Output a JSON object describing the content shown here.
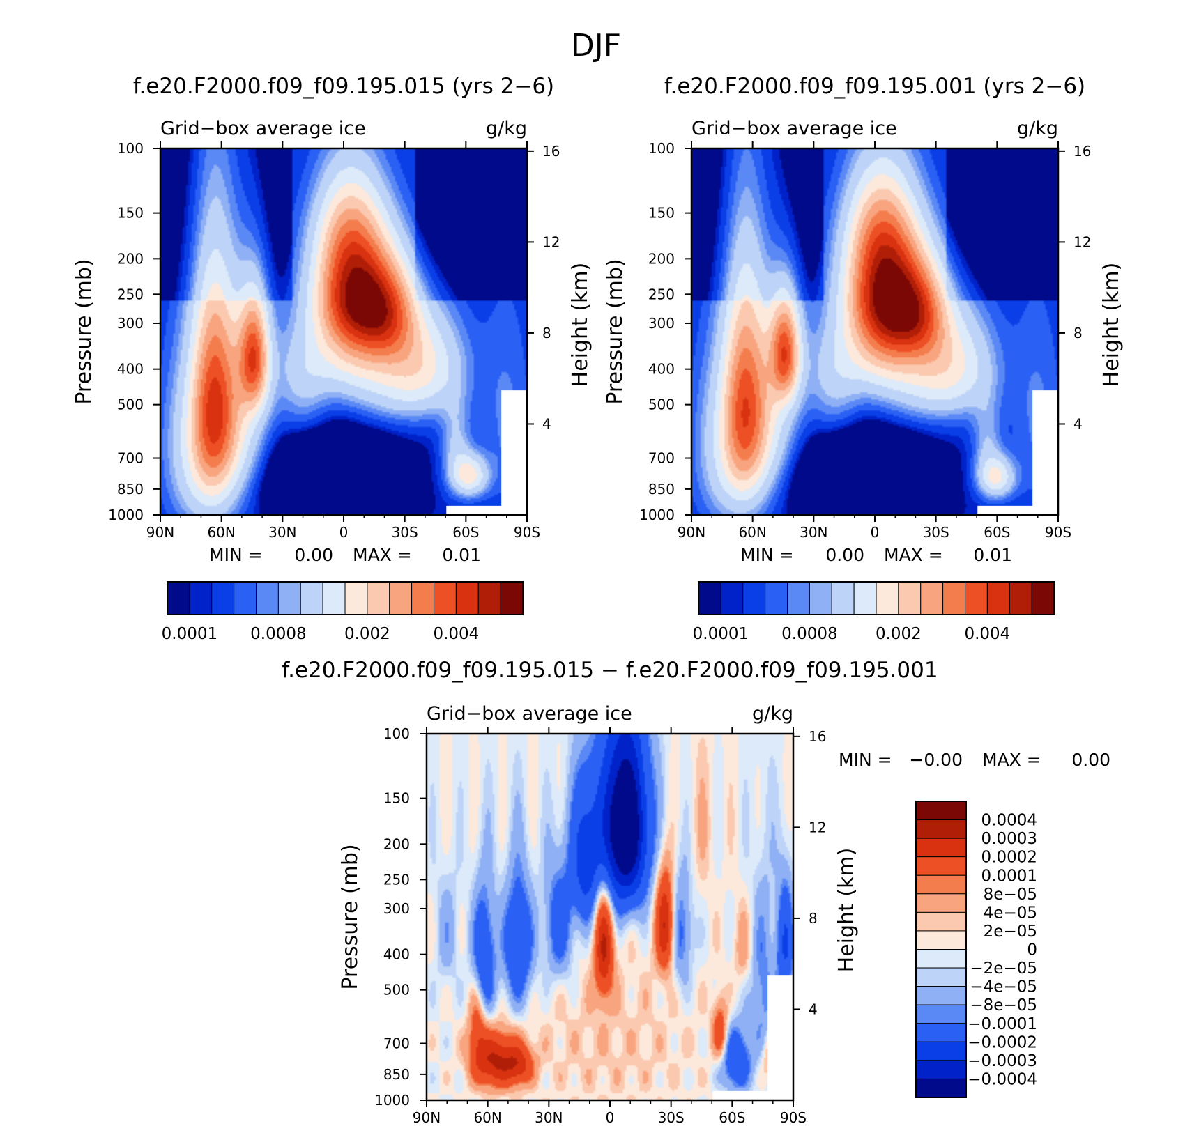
{
  "main_title": "DJF",
  "chart_data": [
    {
      "type": "heatmap",
      "id": "p1",
      "title": "f.e20.F2000.f09_f09.195.015 (yrs 2−6)",
      "left_label": "Grid−box average ice",
      "right_label": "g/kg",
      "xlabel": "",
      "ylabel": "Pressure (mb)",
      "y2label": "Height (km)",
      "x_ticks": [
        "90N",
        "60N",
        "30N",
        "0",
        "30S",
        "60S",
        "90S"
      ],
      "x_range": [
        90,
        -90
      ],
      "y_ticks": [
        "100",
        "150",
        "200",
        "250",
        "300",
        "400",
        "500",
        "700",
        "850",
        "1000"
      ],
      "y_ticks_values": [
        100,
        150,
        200,
        250,
        300,
        400,
        500,
        700,
        850,
        1000
      ],
      "y_range": [
        100,
        1000
      ],
      "y2_ticks": [
        "16",
        "12",
        "8",
        "4"
      ],
      "y2_values": [
        16,
        12,
        8,
        4
      ],
      "minmax": {
        "min_label": "MIN =",
        "min": "0.00",
        "max_label": "MAX =",
        "max": "0.01"
      },
      "colorbar_labels": [
        "0.0001",
        "0.0008",
        "0.002",
        "0.004"
      ],
      "colorbar_colors": [
        "#000a8a",
        "#0022c8",
        "#0a3fe8",
        "#2a60f4",
        "#5a88f4",
        "#8fb0f4",
        "#bdd3f7",
        "#ddeaf9",
        "#fde9dc",
        "#fbc9b0",
        "#f8a57f",
        "#f47d4e",
        "#ee5025",
        "#d83210",
        "#b01e08",
        "#7c0805"
      ],
      "blobs": [
        {
          "lat": -5,
          "p": 250,
          "a": 0.0052,
          "sx": 13,
          "sp": 70
        },
        {
          "lat": -22,
          "p": 280,
          "a": 0.0025,
          "sx": 10,
          "sp": 60
        },
        {
          "lat": -5,
          "p": 380,
          "a": 0.0012,
          "sx": 18,
          "sp": 60
        },
        {
          "lat": -38,
          "p": 380,
          "a": 0.0018,
          "sx": 14,
          "sp": 90
        },
        {
          "lat": -62,
          "p": 780,
          "a": 0.002,
          "sx": 6,
          "sp": 70
        },
        {
          "lat": -55,
          "p": 650,
          "a": 0.0009,
          "sx": 5,
          "sp": 130
        },
        {
          "lat": 44,
          "p": 370,
          "a": 0.0033,
          "sx": 5,
          "sp": 90
        },
        {
          "lat": 64,
          "p": 480,
          "a": 0.0023,
          "sx": 7,
          "sp": 220
        },
        {
          "lat": 54,
          "p": 520,
          "a": 0.0018,
          "sx": 12,
          "sp": 250
        },
        {
          "lat": 66,
          "p": 680,
          "a": 0.0013,
          "sx": 10,
          "sp": 260
        },
        {
          "lat": 20,
          "p": 450,
          "a": 0.0008,
          "sx": 9,
          "sp": 120
        },
        {
          "lat": -18,
          "p": 470,
          "a": 0.0007,
          "sx": 20,
          "sp": 70
        },
        {
          "lat": 78,
          "p": 650,
          "a": 0.0006,
          "sx": 10,
          "sp": 260
        },
        {
          "lat": -80,
          "p": 550,
          "a": 0.0005,
          "sx": 9,
          "sp": 250
        },
        {
          "lat": -2,
          "p": 160,
          "a": 0.0012,
          "sx": 11,
          "sp": 40
        }
      ]
    },
    {
      "type": "heatmap",
      "id": "p2",
      "title": "f.e20.F2000.f09_f09.195.001 (yrs 2−6)",
      "left_label": "Grid−box average ice",
      "right_label": "g/kg",
      "xlabel": "",
      "ylabel": "Pressure (mb)",
      "y2label": "Height (km)",
      "x_ticks": [
        "90N",
        "60N",
        "30N",
        "0",
        "30S",
        "60S",
        "90S"
      ],
      "x_range": [
        90,
        -90
      ],
      "y_ticks": [
        "100",
        "150",
        "200",
        "250",
        "300",
        "400",
        "500",
        "700",
        "850",
        "1000"
      ],
      "y_ticks_values": [
        100,
        150,
        200,
        250,
        300,
        400,
        500,
        700,
        850,
        1000
      ],
      "y_range": [
        100,
        1000
      ],
      "y2_ticks": [
        "16",
        "12",
        "8",
        "4"
      ],
      "y2_values": [
        16,
        12,
        8,
        4
      ],
      "minmax": {
        "min_label": "MIN =",
        "min": "0.00",
        "max_label": "MAX =",
        "max": "0.01"
      },
      "colorbar_labels": [
        "0.0001",
        "0.0008",
        "0.002",
        "0.004"
      ],
      "colorbar_colors": [
        "#000a8a",
        "#0022c8",
        "#0a3fe8",
        "#2a60f4",
        "#5a88f4",
        "#8fb0f4",
        "#bdd3f7",
        "#ddeaf9",
        "#fde9dc",
        "#fbc9b0",
        "#f8a57f",
        "#f47d4e",
        "#ee5025",
        "#d83210",
        "#b01e08",
        "#7c0805"
      ],
      "blobs": [
        {
          "lat": -5,
          "p": 250,
          "a": 0.0055,
          "sx": 13,
          "sp": 75
        },
        {
          "lat": -22,
          "p": 280,
          "a": 0.0025,
          "sx": 10,
          "sp": 60
        },
        {
          "lat": -5,
          "p": 380,
          "a": 0.0012,
          "sx": 18,
          "sp": 60
        },
        {
          "lat": -38,
          "p": 380,
          "a": 0.0017,
          "sx": 14,
          "sp": 90
        },
        {
          "lat": -60,
          "p": 790,
          "a": 0.0018,
          "sx": 6,
          "sp": 70
        },
        {
          "lat": -55,
          "p": 650,
          "a": 0.0008,
          "sx": 5,
          "sp": 130
        },
        {
          "lat": 44,
          "p": 360,
          "a": 0.0034,
          "sx": 5,
          "sp": 80
        },
        {
          "lat": 64,
          "p": 480,
          "a": 0.0023,
          "sx": 7,
          "sp": 220
        },
        {
          "lat": 54,
          "p": 520,
          "a": 0.0016,
          "sx": 12,
          "sp": 240
        },
        {
          "lat": 66,
          "p": 680,
          "a": 0.0011,
          "sx": 10,
          "sp": 240
        },
        {
          "lat": 20,
          "p": 450,
          "a": 0.0008,
          "sx": 9,
          "sp": 120
        },
        {
          "lat": -18,
          "p": 470,
          "a": 0.0007,
          "sx": 20,
          "sp": 70
        },
        {
          "lat": 78,
          "p": 650,
          "a": 0.0006,
          "sx": 10,
          "sp": 260
        },
        {
          "lat": -80,
          "p": 550,
          "a": 0.0005,
          "sx": 9,
          "sp": 250
        },
        {
          "lat": -2,
          "p": 160,
          "a": 0.0012,
          "sx": 11,
          "sp": 40
        }
      ]
    },
    {
      "type": "heatmap",
      "id": "p3",
      "title": "f.e20.F2000.f09_f09.195.015 − f.e20.F2000.f09_f09.195.001",
      "left_label": "Grid−box average ice",
      "right_label": "g/kg",
      "xlabel": "",
      "ylabel": "Pressure (mb)",
      "y2label": "Height (km)",
      "x_ticks": [
        "90N",
        "60N",
        "30N",
        "0",
        "30S",
        "60S",
        "90S"
      ],
      "x_range": [
        90,
        -90
      ],
      "y_ticks": [
        "100",
        "150",
        "200",
        "250",
        "300",
        "400",
        "500",
        "700",
        "850",
        "1000"
      ],
      "y_ticks_values": [
        100,
        150,
        200,
        250,
        300,
        400,
        500,
        700,
        850,
        1000
      ],
      "y_range": [
        100,
        1000
      ],
      "y2_ticks": [
        "16",
        "12",
        "8",
        "4"
      ],
      "y2_values": [
        16,
        12,
        8,
        4
      ],
      "minmax": {
        "min_label": "MIN =",
        "min": "−0.00",
        "max_label": "MAX =",
        "max": "0.00"
      },
      "colorbar_labels": [
        "0.0004",
        "0.0003",
        "0.0002",
        "0.0001",
        "8e−05",
        "4e−05",
        "2e−05",
        "0",
        "−2e−05",
        "−4e−05",
        "−8e−05",
        "−0.0001",
        "−0.0002",
        "−0.0003",
        "−0.0004"
      ],
      "colorbar_colors": [
        "#7c0805",
        "#b01e08",
        "#d83210",
        "#ee5025",
        "#f47d4e",
        "#f8a57f",
        "#fbc9b0",
        "#fde9dc",
        "#ddeaf9",
        "#bdd3f7",
        "#8fb0f4",
        "#5a88f4",
        "#2a60f4",
        "#0a3fe8",
        "#0022c8",
        "#000a8a"
      ],
      "blobs": [
        {
          "lat": -7,
          "p": 180,
          "a": -0.0006,
          "sx": 8,
          "sp": 70
        },
        {
          "lat": 3,
          "p": 380,
          "a": 0.0003,
          "sx": 3,
          "sp": 90
        },
        {
          "lat": -27,
          "p": 330,
          "a": 0.0003,
          "sx": 3,
          "sp": 70
        },
        {
          "lat": 57,
          "p": 780,
          "a": 0.0003,
          "sx": 7,
          "sp": 90
        },
        {
          "lat": 45,
          "p": 800,
          "a": 0.00022,
          "sx": 5,
          "sp": 70
        },
        {
          "lat": 65,
          "p": 620,
          "a": 0.00015,
          "sx": 3,
          "sp": 120
        },
        {
          "lat": -54,
          "p": 650,
          "a": 0.00018,
          "sx": 2.5,
          "sp": 80
        },
        {
          "lat": -78,
          "p": 760,
          "a": 8e-05,
          "sx": 3,
          "sp": 80
        },
        {
          "lat": -65,
          "p": 380,
          "a": 6e-05,
          "sx": 3,
          "sp": 60
        },
        {
          "lat": 62,
          "p": 420,
          "a": -0.0002,
          "sx": 4,
          "sp": 120
        },
        {
          "lat": 45,
          "p": 380,
          "a": -0.0002,
          "sx": 5,
          "sp": 110
        },
        {
          "lat": 25,
          "p": 330,
          "a": -0.00015,
          "sx": 5,
          "sp": 90
        },
        {
          "lat": 12,
          "p": 220,
          "a": -0.00025,
          "sx": 5,
          "sp": 70
        },
        {
          "lat": -35,
          "p": 350,
          "a": -0.00012,
          "sx": 4,
          "sp": 90
        },
        {
          "lat": -62,
          "p": 780,
          "a": -0.0002,
          "sx": 5,
          "sp": 110
        },
        {
          "lat": -75,
          "p": 500,
          "a": -0.0001,
          "sx": 4,
          "sp": 200
        },
        {
          "lat": -86,
          "p": 380,
          "a": -0.0002,
          "sx": 3,
          "sp": 100
        },
        {
          "lat": 80,
          "p": 350,
          "a": -6e-05,
          "sx": 4,
          "sp": 90
        },
        {
          "lat": -45,
          "p": 180,
          "a": 3e-05,
          "sx": 5,
          "sp": 60
        },
        {
          "lat": 0,
          "p": 700,
          "a": 3e-05,
          "sx": 30,
          "sp": 250
        }
      ]
    }
  ]
}
